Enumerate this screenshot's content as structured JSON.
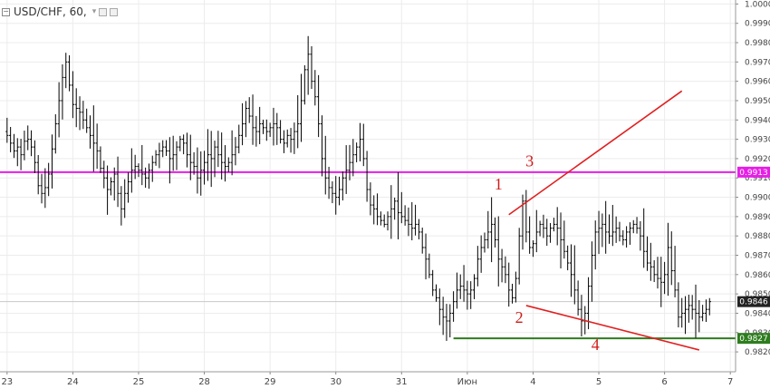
{
  "toolbar": {
    "minus_glyph": "−",
    "symbol_label": "USD/CHF, 60,",
    "caret_glyph": "▾"
  },
  "chart_data": {
    "type": "ohlc",
    "symbol": "USD/CHF",
    "timeframe": "60",
    "ylim": [
      0.9813,
      1.0
    ],
    "y_ticks": [
      "1.0000",
      "0.9990",
      "0.9980",
      "0.9970",
      "0.9960",
      "0.9950",
      "0.9940",
      "0.9930",
      "0.9920",
      "0.9910",
      "0.9900",
      "0.9890",
      "0.9880",
      "0.9870",
      "0.9860",
      "0.9850",
      "0.9840",
      "0.9830",
      "0.9820"
    ],
    "x_ticks": [
      {
        "label": "23",
        "bar": 1
      },
      {
        "label": "24",
        "bar": 20
      },
      {
        "label": "25",
        "bar": 39
      },
      {
        "label": "28",
        "bar": 58
      },
      {
        "label": "29",
        "bar": 77
      },
      {
        "label": "30",
        "bar": 96
      },
      {
        "label": "31",
        "bar": 115
      },
      {
        "label": "Июн",
        "bar": 134
      },
      {
        "label": "4",
        "bar": 153
      },
      {
        "label": "5",
        "bar": 172
      },
      {
        "label": "6",
        "bar": 191
      },
      {
        "label": "7",
        "bar": 210
      }
    ],
    "closes": [
      0.9932,
      0.9928,
      0.9924,
      0.9926,
      0.9922,
      0.9929,
      0.993,
      0.9926,
      0.9918,
      0.9906,
      0.9902,
      0.9905,
      0.9912,
      0.9925,
      0.9938,
      0.995,
      0.9962,
      0.997,
      0.9958,
      0.9948,
      0.9946,
      0.9944,
      0.994,
      0.9936,
      0.9932,
      0.9928,
      0.9924,
      0.9915,
      0.991,
      0.9904,
      0.9908,
      0.9912,
      0.9902,
      0.9894,
      0.9902,
      0.9908,
      0.9914,
      0.9916,
      0.9914,
      0.9912,
      0.991,
      0.9914,
      0.9918,
      0.9922,
      0.9924,
      0.9926,
      0.9924,
      0.992,
      0.9922,
      0.9926,
      0.993,
      0.9928,
      0.9922,
      0.9918,
      0.9916,
      0.991,
      0.9914,
      0.9918,
      0.9922,
      0.992,
      0.9926,
      0.9922,
      0.9918,
      0.9916,
      0.9918,
      0.9922,
      0.9926,
      0.9932,
      0.9938,
      0.9946,
      0.9942,
      0.9936,
      0.9934,
      0.9938,
      0.9936,
      0.9934,
      0.9936,
      0.9938,
      0.9936,
      0.993,
      0.9928,
      0.9932,
      0.993,
      0.9934,
      0.9938,
      0.995,
      0.9966,
      0.9974,
      0.996,
      0.9952,
      0.9938,
      0.992,
      0.991,
      0.9905,
      0.9902,
      0.99,
      0.9904,
      0.991,
      0.9914,
      0.9918,
      0.9922,
      0.9926,
      0.993,
      0.992,
      0.9904,
      0.9896,
      0.9894,
      0.989,
      0.9888,
      0.9886,
      0.989,
      0.9894,
      0.9898,
      0.9892,
      0.989,
      0.9888,
      0.9886,
      0.9884,
      0.9886,
      0.9882,
      0.9874,
      0.9868,
      0.986,
      0.9852,
      0.9848,
      0.9842,
      0.9838,
      0.9836,
      0.984,
      0.9846,
      0.9852,
      0.9854,
      0.9852,
      0.985,
      0.9852,
      0.9858,
      0.9868,
      0.9874,
      0.9878,
      0.9882,
      0.9886,
      0.9878,
      0.9868,
      0.9864,
      0.986,
      0.9852,
      0.9848,
      0.9858,
      0.988,
      0.9898,
      0.9882,
      0.9874,
      0.9876,
      0.9882,
      0.9886,
      0.9884,
      0.988,
      0.9884,
      0.9886,
      0.9884,
      0.9878,
      0.9872,
      0.9866,
      0.986,
      0.9852,
      0.9842,
      0.9836,
      0.984,
      0.9854,
      0.987,
      0.9882,
      0.9884,
      0.9886,
      0.9882,
      0.988,
      0.9882,
      0.9884,
      0.988,
      0.9878,
      0.9882,
      0.9884,
      0.9886,
      0.9884,
      0.988,
      0.9872,
      0.9866,
      0.9864,
      0.986,
      0.9858,
      0.9856,
      0.986,
      0.9874,
      0.9862,
      0.9852,
      0.9838,
      0.984,
      0.9842,
      0.9844,
      0.9842,
      0.984,
      0.9838,
      0.984,
      0.9842,
      0.9846
    ],
    "horizontal_levels": [
      {
        "value": 0.9913,
        "label": "0.9913",
        "color": "#e61ee6"
      },
      {
        "value": 0.9846,
        "label": "0.9846",
        "color": "#222222",
        "type": "current-price"
      },
      {
        "value": 0.9827,
        "label": "0.9827",
        "color": "#2e7d1e"
      }
    ],
    "trendlines": [
      {
        "from": {
          "bar": 146,
          "price": 0.9891
        },
        "to": {
          "bar": 196,
          "price": 0.9955
        },
        "color": "#e02020"
      },
      {
        "from": {
          "bar": 151,
          "price": 0.9844
        },
        "to": {
          "bar": 201,
          "price": 0.9821
        },
        "color": "#e02020"
      }
    ],
    "annotations": [
      {
        "text": "1",
        "bar": 143,
        "price": 0.9904
      },
      {
        "text": "2",
        "bar": 149,
        "price": 0.9835
      },
      {
        "text": "3",
        "bar": 152,
        "price": 0.9916
      },
      {
        "text": "4",
        "bar": 171,
        "price": 0.9821
      }
    ],
    "colors": {
      "bars": "#000000",
      "grid": "#ececec",
      "annotation": "#d01a1a"
    }
  }
}
